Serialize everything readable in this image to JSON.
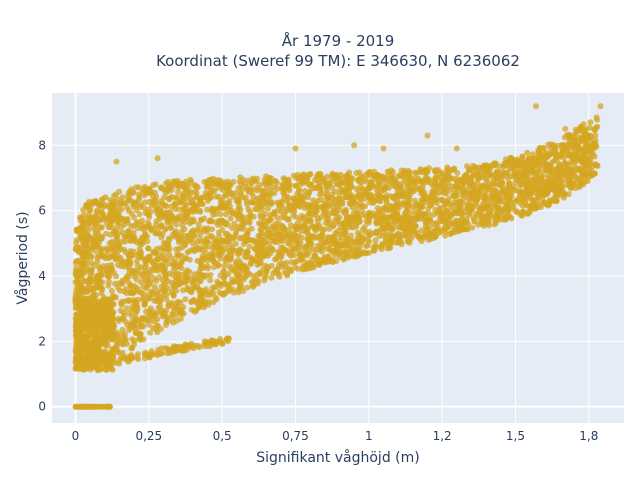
{
  "chart_data": {
    "type": "scatter",
    "title": [
      "År 1979 - 2019",
      "Koordinat (Sweref 99 TM): E 346630, N 6236062"
    ],
    "xlabel": "Signifikant våghöjd (m)",
    "ylabel": "Vågperiod (s)",
    "xlim": [
      -0.08,
      1.87
    ],
    "ylim": [
      -0.5,
      9.6
    ],
    "x_ticks": [
      0,
      0.25,
      0.5,
      0.75,
      1,
      1.25,
      1.5,
      1.75
    ],
    "x_tick_labels": [
      "0",
      "0,25",
      "0,5",
      "0,75",
      "1",
      "1,2",
      "1,5",
      "1,8"
    ],
    "y_ticks": [
      0,
      2,
      4,
      6,
      8
    ],
    "y_tick_labels": [
      "0",
      "2",
      "4",
      "6",
      "8"
    ],
    "grid": true,
    "marker_color": "#d4a520",
    "series": [
      {
        "points_description": "dense cloud of wave observations",
        "upper_envelope": [
          [
            0.0,
            5.6
          ],
          [
            0.05,
            6.4
          ],
          [
            0.1,
            6.5
          ],
          [
            0.2,
            6.7
          ],
          [
            0.3,
            6.9
          ],
          [
            0.5,
            7.0
          ],
          [
            0.75,
            7.1
          ],
          [
            1.0,
            7.2
          ],
          [
            1.2,
            7.3
          ],
          [
            1.4,
            7.4
          ],
          [
            1.55,
            7.8
          ],
          [
            1.65,
            8.2
          ],
          [
            1.78,
            8.9
          ]
        ],
        "lower_envelope": [
          [
            0.0,
            1.1
          ],
          [
            0.15,
            1.5
          ],
          [
            0.3,
            2.4
          ],
          [
            0.5,
            3.3
          ],
          [
            0.75,
            4.1
          ],
          [
            1.0,
            4.7
          ],
          [
            1.2,
            5.1
          ],
          [
            1.4,
            5.5
          ],
          [
            1.55,
            5.9
          ],
          [
            1.65,
            6.3
          ],
          [
            1.78,
            7.1
          ]
        ],
        "low_branch": [
          [
            0.15,
            1.4
          ],
          [
            0.3,
            1.7
          ],
          [
            0.5,
            2.0
          ],
          [
            0.53,
            2.1
          ]
        ],
        "zero_period_points": [
          [
            0.0,
            0
          ],
          [
            0.03,
            0
          ],
          [
            0.06,
            0
          ],
          [
            0.09,
            0
          ],
          [
            0.12,
            0
          ]
        ],
        "outliers": [
          [
            1.57,
            9.2
          ],
          [
            1.67,
            8.5
          ],
          [
            1.79,
            9.2
          ],
          [
            1.2,
            8.3
          ],
          [
            0.95,
            8.0
          ],
          [
            0.75,
            7.9
          ],
          [
            0.28,
            7.6
          ],
          [
            0.14,
            7.5
          ],
          [
            1.05,
            7.9
          ],
          [
            1.3,
            7.9
          ]
        ]
      }
    ]
  }
}
